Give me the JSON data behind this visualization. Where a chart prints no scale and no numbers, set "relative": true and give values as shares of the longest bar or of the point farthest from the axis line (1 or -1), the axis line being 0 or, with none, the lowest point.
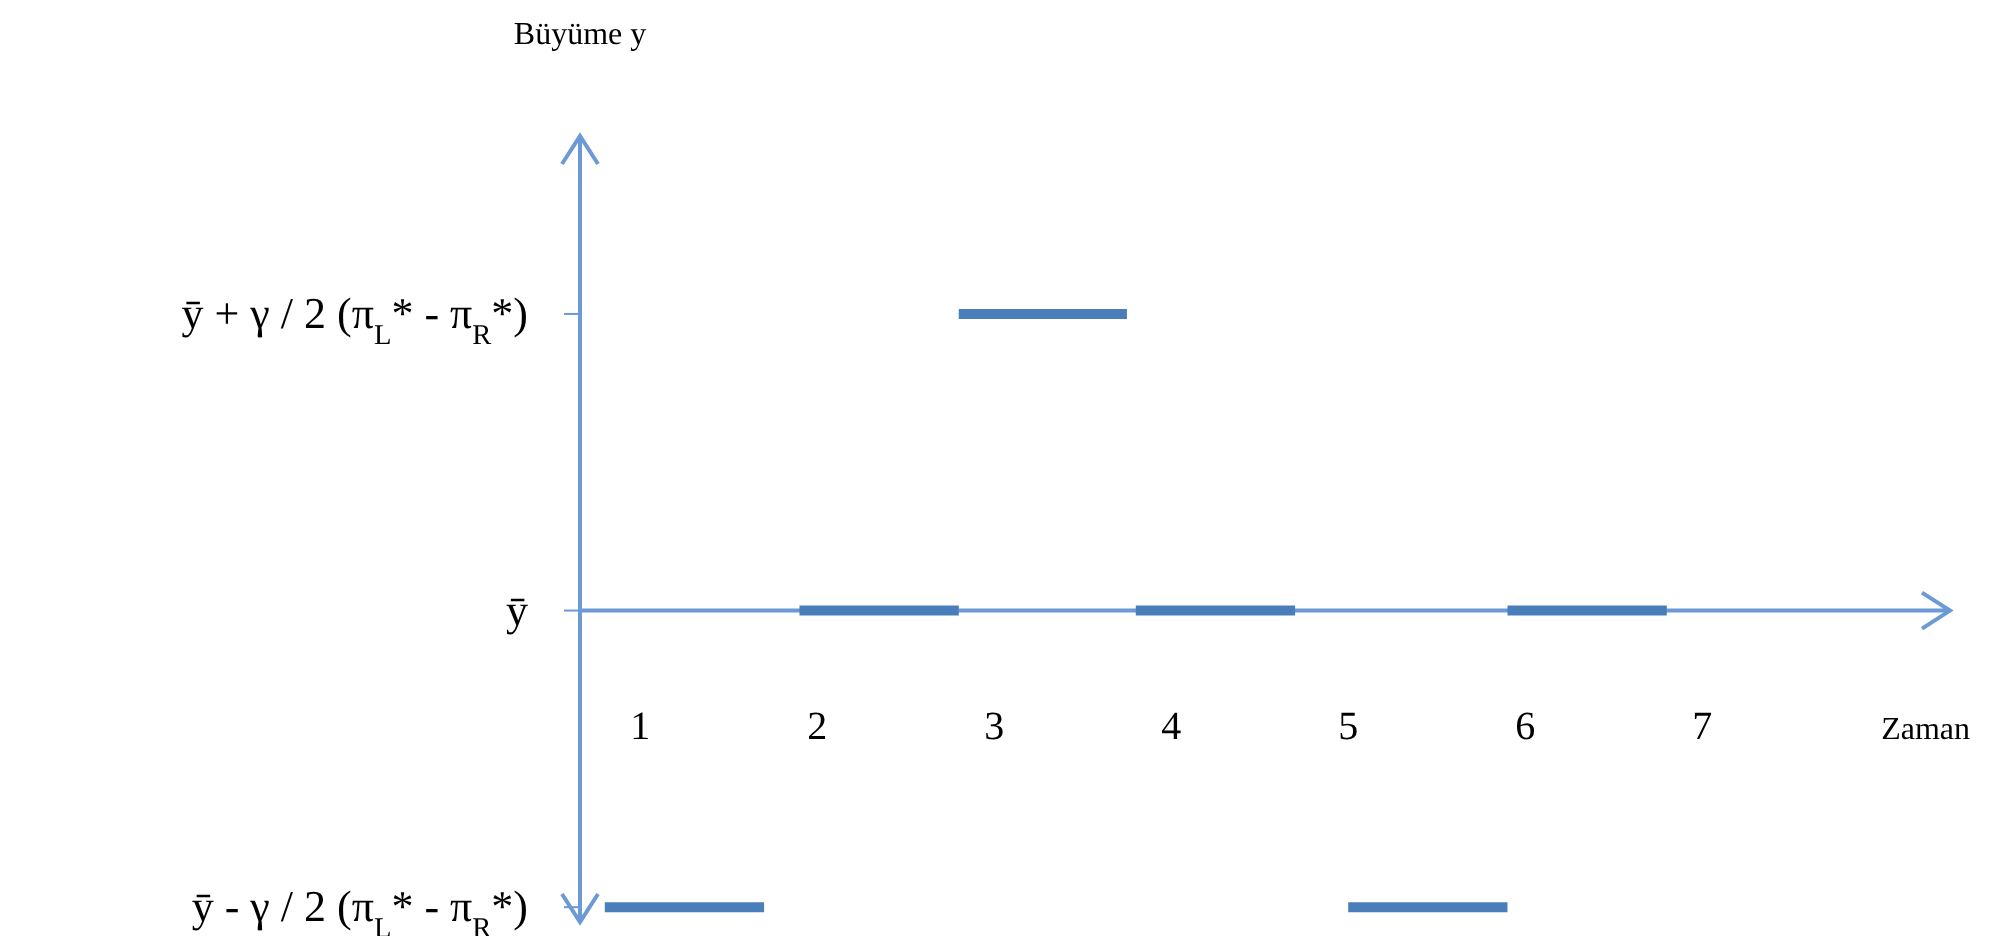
{
  "chart_data": {
    "type": "line",
    "xlabel": "Zaman",
    "relative": true,
    "xlim": [
      0.66,
      8.4
    ],
    "xticks": [
      1,
      2,
      3,
      4,
      5,
      6,
      7
    ],
    "annotations": [
      "Büyüme y",
      "ȳ - γ / 2 (π$_{L}$* - π$_{R}$*)",
      "ȳ",
      "ȳ + γ / 2 (π$_{L}$* - π$_{R}$*)"
    ],
    "grid": false,
    "legend": false,
    "marker": "none",
    "line_style": "solid",
    "series": [
      {
        "color": "#4a7ebb",
        "x": [
          0.8,
          1.7,
          null,
          1.9,
          2.8,
          null,
          2.8,
          3.75,
          null,
          3.8,
          4.7,
          null,
          5.0,
          5.9,
          null,
          5.9,
          6.8
        ],
        "values": [
          -1,
          -1,
          null,
          0,
          0,
          null,
          1,
          1,
          null,
          0,
          0,
          null,
          -1,
          -1,
          null,
          0,
          0
        ]
      }
    ]
  }
}
